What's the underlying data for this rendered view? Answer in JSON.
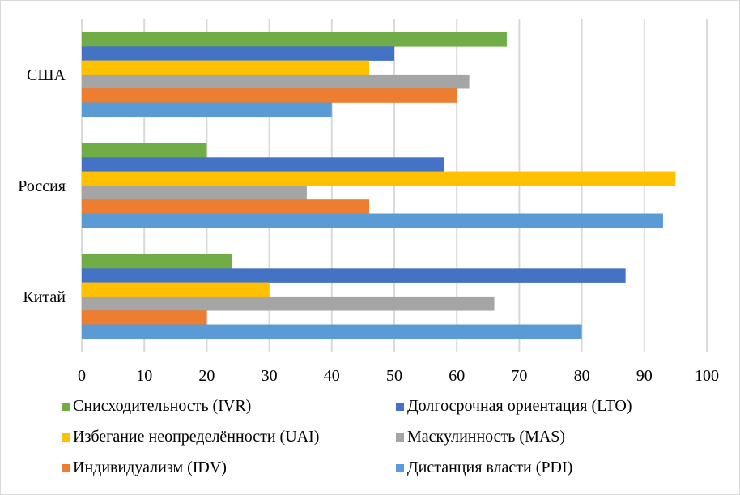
{
  "chart_data": {
    "type": "bar",
    "orientation": "horizontal",
    "title": "",
    "xlabel": "",
    "ylabel": "",
    "xlim": [
      0,
      100
    ],
    "x_ticks": [
      0,
      10,
      20,
      30,
      40,
      50,
      60,
      70,
      80,
      90,
      100
    ],
    "grid": "vertical",
    "legend_position": "bottom",
    "categories": [
      "США",
      "Россия",
      "Китай"
    ],
    "series": [
      {
        "name": "Снисходительность (IVR)",
        "color": "#70ad47",
        "values": [
          68,
          20,
          24
        ]
      },
      {
        "name": "Долгосрочная ориентация (LTO)",
        "color": "#4472c4",
        "values": [
          50,
          58,
          87
        ]
      },
      {
        "name": "Избегание неопределённости (UAI)",
        "color": "#ffc000",
        "values": [
          46,
          95,
          30
        ]
      },
      {
        "name": "Маскулинность (MAS)",
        "color": "#a5a5a5",
        "values": [
          62,
          36,
          66
        ]
      },
      {
        "name": "Индивидуализм (IDV)",
        "color": "#ed7d31",
        "values": [
          60,
          46,
          20
        ]
      },
      {
        "name": "Дистанция власти (PDI)",
        "color": "#5b9bd5",
        "values": [
          40,
          93,
          80
        ]
      }
    ],
    "legend_order": [
      0,
      1,
      2,
      3,
      4,
      5
    ]
  }
}
